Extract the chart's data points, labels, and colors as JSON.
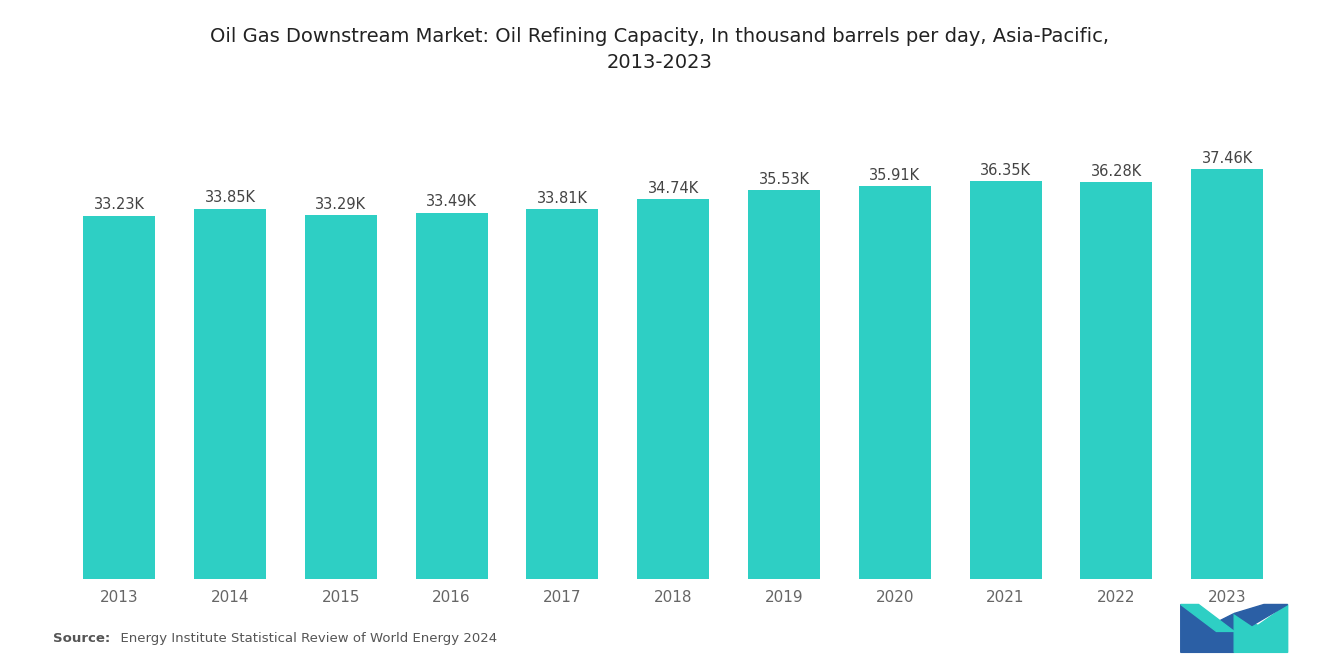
{
  "title": "Oil Gas Downstream Market: Oil Refining Capacity, In thousand barrels per day, Asia-Pacific,\n2013-2023",
  "years": [
    2013,
    2014,
    2015,
    2016,
    2017,
    2018,
    2019,
    2020,
    2021,
    2022,
    2023
  ],
  "values": [
    33230,
    33850,
    33290,
    33490,
    33810,
    34740,
    35530,
    35910,
    36350,
    36280,
    37460
  ],
  "labels": [
    "33.23K",
    "33.85K",
    "33.29K",
    "33.49K",
    "33.81K",
    "34.74K",
    "35.53K",
    "35.91K",
    "36.35K",
    "36.28K",
    "37.46K"
  ],
  "bar_color": "#2ECFC4",
  "background_color": "#ffffff",
  "title_fontsize": 14,
  "label_fontsize": 10.5,
  "tick_fontsize": 11,
  "source_bold": "Source:",
  "source_rest": "  Energy Institute Statistical Review of World Energy 2024",
  "ylim_min": 0,
  "ylim_max": 42000,
  "bar_width": 0.65
}
